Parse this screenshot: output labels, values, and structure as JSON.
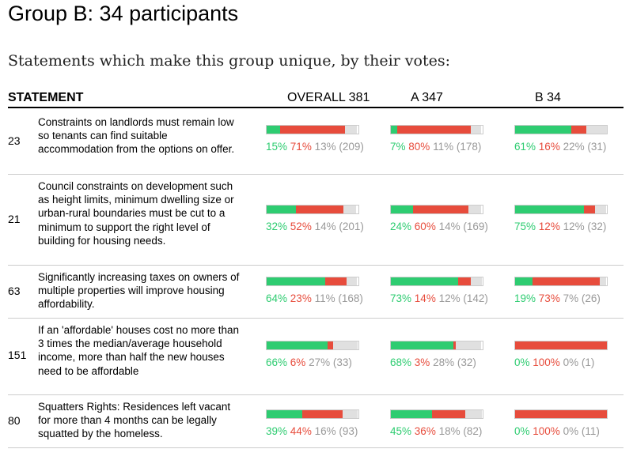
{
  "title": "Group B: 34 participants",
  "subtitle": "Statements which make this group unique, by their votes:",
  "headers": {
    "statement": "STATEMENT",
    "overall": "OVERALL 381",
    "a": "A 347",
    "b": "B 34"
  },
  "colors": {
    "agree": "#2ecc71",
    "disagree": "#e74c3c",
    "pass": "#e0e0e0"
  },
  "chart_data": {
    "type": "table",
    "columns": [
      "OVERALL 381",
      "A 347",
      "B 34"
    ],
    "rows": [
      {
        "id": "23",
        "statement": "Constraints on landlords must remain low so tenants can find suitable accommodation from the options on offer.",
        "cells": [
          {
            "agree": 15,
            "disagree": 71,
            "pass": 13,
            "count": 209
          },
          {
            "agree": 7,
            "disagree": 80,
            "pass": 11,
            "count": 178
          },
          {
            "agree": 61,
            "disagree": 16,
            "pass": 22,
            "count": 31
          }
        ]
      },
      {
        "id": "21",
        "statement": "Council constraints on development such as height limits, minimum dwelling size or urban-rural boundaries must be cut to a minimum to support the right level of building for housing needs.",
        "cells": [
          {
            "agree": 32,
            "disagree": 52,
            "pass": 14,
            "count": 201
          },
          {
            "agree": 24,
            "disagree": 60,
            "pass": 14,
            "count": 169
          },
          {
            "agree": 75,
            "disagree": 12,
            "pass": 12,
            "count": 32
          }
        ]
      },
      {
        "id": "63",
        "statement": "Significantly increasing taxes on owners of multiple properties will improve housing affordability.",
        "cells": [
          {
            "agree": 64,
            "disagree": 23,
            "pass": 11,
            "count": 168
          },
          {
            "agree": 73,
            "disagree": 14,
            "pass": 12,
            "count": 142
          },
          {
            "agree": 19,
            "disagree": 73,
            "pass": 7,
            "count": 26
          }
        ]
      },
      {
        "id": "151",
        "statement": "If an 'affordable' houses cost no more than 3 times the median/average household income, more than half the new houses need to be affordable",
        "cells": [
          {
            "agree": 66,
            "disagree": 6,
            "pass": 27,
            "count": 33
          },
          {
            "agree": 68,
            "disagree": 3,
            "pass": 28,
            "count": 32
          },
          {
            "agree": 0,
            "disagree": 100,
            "pass": 0,
            "count": 1
          }
        ]
      },
      {
        "id": "80",
        "statement": "Squatters Rights: Residences left vacant for more than 4 months can be legally squatted by the homeless.",
        "cells": [
          {
            "agree": 39,
            "disagree": 44,
            "pass": 16,
            "count": 93
          },
          {
            "agree": 45,
            "disagree": 36,
            "pass": 18,
            "count": 82
          },
          {
            "agree": 0,
            "disagree": 100,
            "pass": 0,
            "count": 11
          }
        ]
      }
    ]
  }
}
